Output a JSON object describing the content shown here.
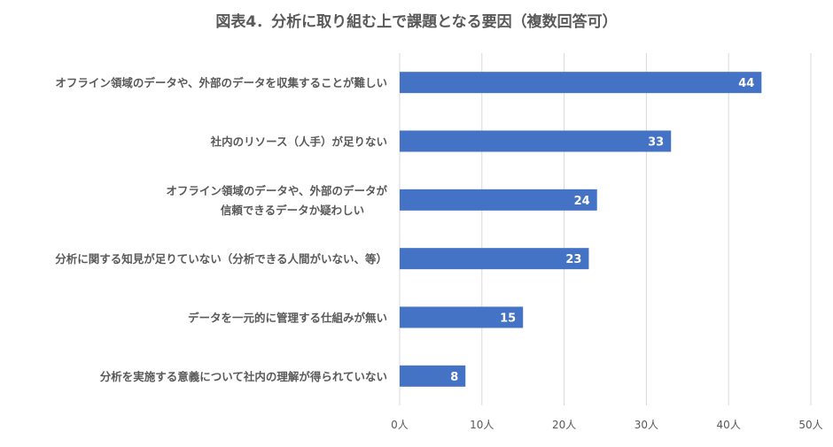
{
  "chart_data": {
    "type": "bar",
    "orientation": "horizontal",
    "title": "図表4．分析に取り組む上で課題となる要因（複数回答可）",
    "categories": [
      [
        "オフライン領域のデータや、外部のデータを収集することが難しい"
      ],
      [
        "社内のリソース（人手）が足りない"
      ],
      [
        "オフライン領域のデータや、外部のデータが",
        "信頼できるデータか疑わしい"
      ],
      [
        "分析に関する知見が足りていない（分析できる人間がいない、等）"
      ],
      [
        "データを一元的に管理する仕組みが無い"
      ],
      [
        "分析を実施する意義について社内の理解が得られていない"
      ]
    ],
    "values": [
      44,
      33,
      24,
      23,
      15,
      8
    ],
    "xlim": [
      0,
      50
    ],
    "xticks": [
      0,
      10,
      20,
      30,
      40,
      50
    ],
    "xtick_labels": [
      "0人",
      "10人",
      "20人",
      "30人",
      "40人",
      "50人"
    ],
    "grid": true,
    "data_labels": true,
    "colors": {
      "bar": "#4472C4",
      "text": "#595959",
      "grid": "#D9D9D9",
      "label": "#FFFFFF"
    }
  }
}
